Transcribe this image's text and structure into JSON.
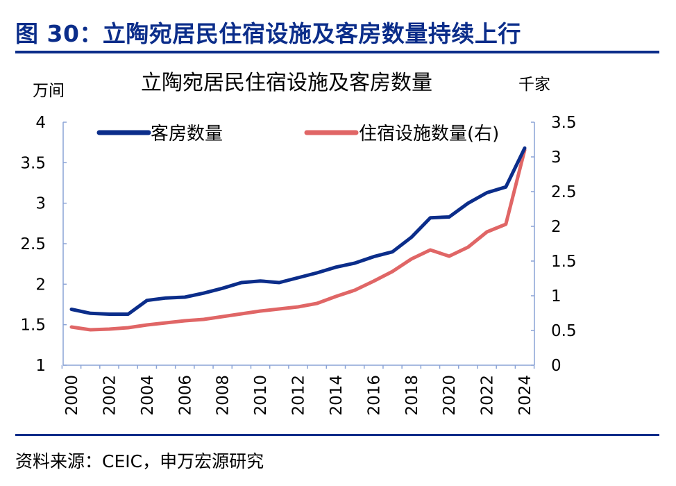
{
  "figure": {
    "title": "图 30：立陶宛居民住宿设施及客房数量持续上行",
    "source": "资料来源：CEIC，申万宏源研究"
  },
  "chart_data": {
    "type": "line",
    "title": "立陶宛居民住宿设施及客房数量",
    "y_left_unit": "万间",
    "y_right_unit": "千家",
    "x": [
      2000,
      2001,
      2002,
      2003,
      2004,
      2005,
      2006,
      2007,
      2008,
      2009,
      2010,
      2011,
      2012,
      2013,
      2014,
      2015,
      2016,
      2017,
      2018,
      2019,
      2020,
      2021,
      2022,
      2023,
      2024
    ],
    "x_tick_labels": [
      "2000",
      "2002",
      "2004",
      "2006",
      "2008",
      "2010",
      "2012",
      "2014",
      "2016",
      "2018",
      "2020",
      "2022",
      "2024"
    ],
    "y_left": {
      "range": [
        1,
        4
      ],
      "ticks": [
        "1",
        "1.5",
        "2",
        "2.5",
        "3",
        "3.5",
        "4"
      ]
    },
    "y_right": {
      "range": [
        0,
        3.5
      ],
      "ticks": [
        "0",
        "0.5",
        "1",
        "1.5",
        "2",
        "2.5",
        "3",
        "3.5"
      ]
    },
    "series": [
      {
        "name": "客房数量",
        "axis": "left",
        "color": "#0b2d8a",
        "values": [
          1.69,
          1.64,
          1.63,
          1.63,
          1.8,
          1.83,
          1.84,
          1.89,
          1.95,
          2.02,
          2.04,
          2.02,
          2.08,
          2.14,
          2.21,
          2.26,
          2.34,
          2.4,
          2.58,
          2.82,
          2.83,
          3.0,
          3.13,
          3.2,
          3.68
        ]
      },
      {
        "name": "住宿设施数量(右)",
        "axis": "right",
        "color": "#e06666",
        "values": [
          0.55,
          0.51,
          0.52,
          0.54,
          0.58,
          0.61,
          0.64,
          0.66,
          0.7,
          0.74,
          0.78,
          0.81,
          0.84,
          0.89,
          0.99,
          1.08,
          1.21,
          1.35,
          1.53,
          1.66,
          1.57,
          1.7,
          1.92,
          2.03,
          3.1
        ]
      }
    ],
    "legend_position": "top",
    "grid": false
  }
}
